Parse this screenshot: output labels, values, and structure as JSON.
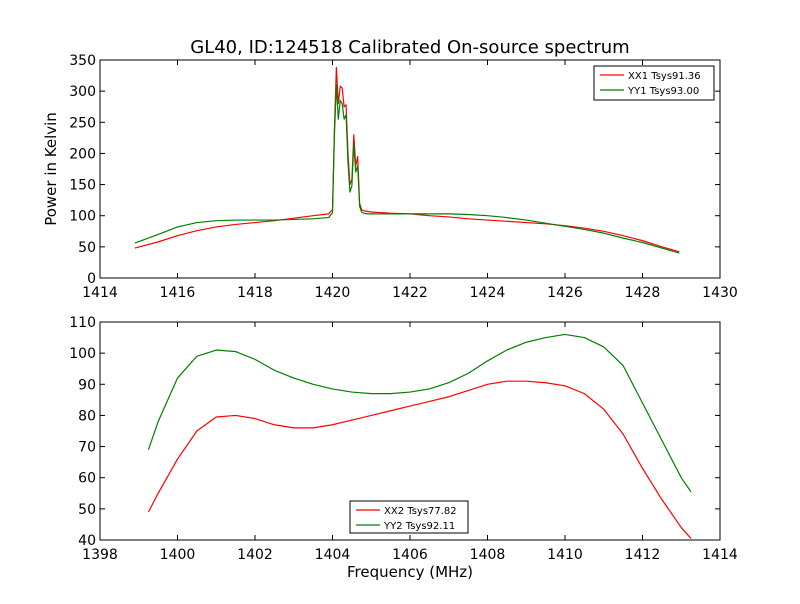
{
  "chart_data": [
    {
      "type": "line",
      "title": "GL40, ID:124518 Calibrated On-source spectrum",
      "xlabel": "",
      "ylabel": "Power in Kelvin",
      "xlim": [
        1414,
        1430
      ],
      "ylim": [
        0,
        350
      ],
      "xticks": [
        1414,
        1416,
        1418,
        1420,
        1422,
        1424,
        1426,
        1428,
        1430
      ],
      "yticks": [
        0,
        50,
        100,
        150,
        200,
        250,
        300,
        350
      ],
      "legend_position": "top-right",
      "grid": false,
      "series": [
        {
          "name": "XX1 Tsys91.36",
          "color": "#ff0000",
          "x": [
            1414.9,
            1415.5,
            1416,
            1416.5,
            1417,
            1417.5,
            1418,
            1418.5,
            1419,
            1419.5,
            1419.9,
            1420.0,
            1420.05,
            1420.1,
            1420.15,
            1420.2,
            1420.25,
            1420.3,
            1420.35,
            1420.4,
            1420.45,
            1420.5,
            1420.55,
            1420.6,
            1420.65,
            1420.7,
            1420.75,
            1420.8,
            1420.9,
            1421.0,
            1421.5,
            1422,
            1422.5,
            1423,
            1423.5,
            1424,
            1424.5,
            1425,
            1425.5,
            1426,
            1426.5,
            1427,
            1427.5,
            1428,
            1428.5,
            1428.95
          ],
          "y": [
            48,
            58,
            68,
            76,
            82,
            86,
            89,
            92,
            96,
            100,
            103,
            110,
            240,
            338,
            280,
            308,
            305,
            275,
            278,
            200,
            150,
            158,
            230,
            180,
            195,
            120,
            110,
            108,
            107,
            106,
            104,
            103,
            100,
            98,
            95,
            93,
            91,
            89,
            87,
            84,
            80,
            75,
            68,
            60,
            50,
            42
          ]
        },
        {
          "name": "YY1 Tsys93.00",
          "color": "#008000",
          "x": [
            1414.9,
            1415.5,
            1416,
            1416.5,
            1417,
            1417.5,
            1418,
            1418.5,
            1419,
            1419.5,
            1419.9,
            1420.0,
            1420.05,
            1420.1,
            1420.15,
            1420.2,
            1420.25,
            1420.3,
            1420.35,
            1420.4,
            1420.45,
            1420.5,
            1420.55,
            1420.6,
            1420.65,
            1420.7,
            1420.75,
            1420.8,
            1420.9,
            1421.0,
            1421.5,
            1422,
            1422.5,
            1423,
            1423.5,
            1424,
            1424.5,
            1425,
            1425.5,
            1426,
            1426.5,
            1427,
            1427.5,
            1428,
            1428.5,
            1428.95
          ],
          "y": [
            56,
            70,
            82,
            89,
            92,
            93,
            93,
            93,
            94,
            95,
            97,
            105,
            230,
            310,
            255,
            285,
            280,
            255,
            262,
            185,
            138,
            148,
            215,
            170,
            180,
            115,
            106,
            104,
            103,
            103,
            103,
            103,
            103,
            103,
            102,
            100,
            97,
            93,
            88,
            83,
            78,
            72,
            64,
            57,
            48,
            40
          ]
        }
      ]
    },
    {
      "type": "line",
      "title": "",
      "xlabel": "Frequency (MHz)",
      "ylabel": "",
      "xlim": [
        1398,
        1414
      ],
      "ylim": [
        40,
        110
      ],
      "xticks": [
        1398,
        1400,
        1402,
        1404,
        1406,
        1408,
        1410,
        1412,
        1414
      ],
      "yticks": [
        40,
        50,
        60,
        70,
        80,
        90,
        100,
        110
      ],
      "legend_position": "lower-center",
      "grid": false,
      "series": [
        {
          "name": "XX2 Tsys77.82",
          "color": "#ff0000",
          "x": [
            1399.25,
            1399.5,
            1400,
            1400.5,
            1401,
            1401.5,
            1402,
            1402.5,
            1403,
            1403.5,
            1404,
            1404.5,
            1405,
            1405.5,
            1406,
            1406.5,
            1407,
            1407.5,
            1408,
            1408.5,
            1409,
            1409.5,
            1410,
            1410.5,
            1411,
            1411.5,
            1412,
            1412.5,
            1413,
            1413.25
          ],
          "y": [
            49,
            55,
            66,
            75,
            79.5,
            80,
            79,
            77,
            76,
            76,
            77,
            78.5,
            80,
            81.5,
            83,
            84.5,
            86,
            88,
            90,
            91,
            91,
            90.5,
            89.5,
            87,
            82,
            74,
            63,
            53,
            44,
            40.5
          ]
        },
        {
          "name": "YY2 Tsys92.11",
          "color": "#008000",
          "x": [
            1399.25,
            1399.5,
            1400,
            1400.5,
            1401,
            1401.5,
            1402,
            1402.5,
            1403,
            1403.5,
            1404,
            1404.5,
            1405,
            1405.5,
            1406,
            1406.5,
            1407,
            1407.5,
            1408,
            1408.5,
            1409,
            1409.5,
            1410,
            1410.5,
            1411,
            1411.5,
            1412,
            1412.5,
            1413,
            1413.25
          ],
          "y": [
            69,
            78,
            92,
            99,
            101,
            100.5,
            98,
            94.5,
            92,
            90,
            88.5,
            87.5,
            87,
            87,
            87.5,
            88.5,
            90.5,
            93.5,
            97.5,
            101,
            103.5,
            105,
            106,
            105,
            102,
            96,
            84,
            72,
            60,
            55.5
          ]
        }
      ]
    }
  ]
}
